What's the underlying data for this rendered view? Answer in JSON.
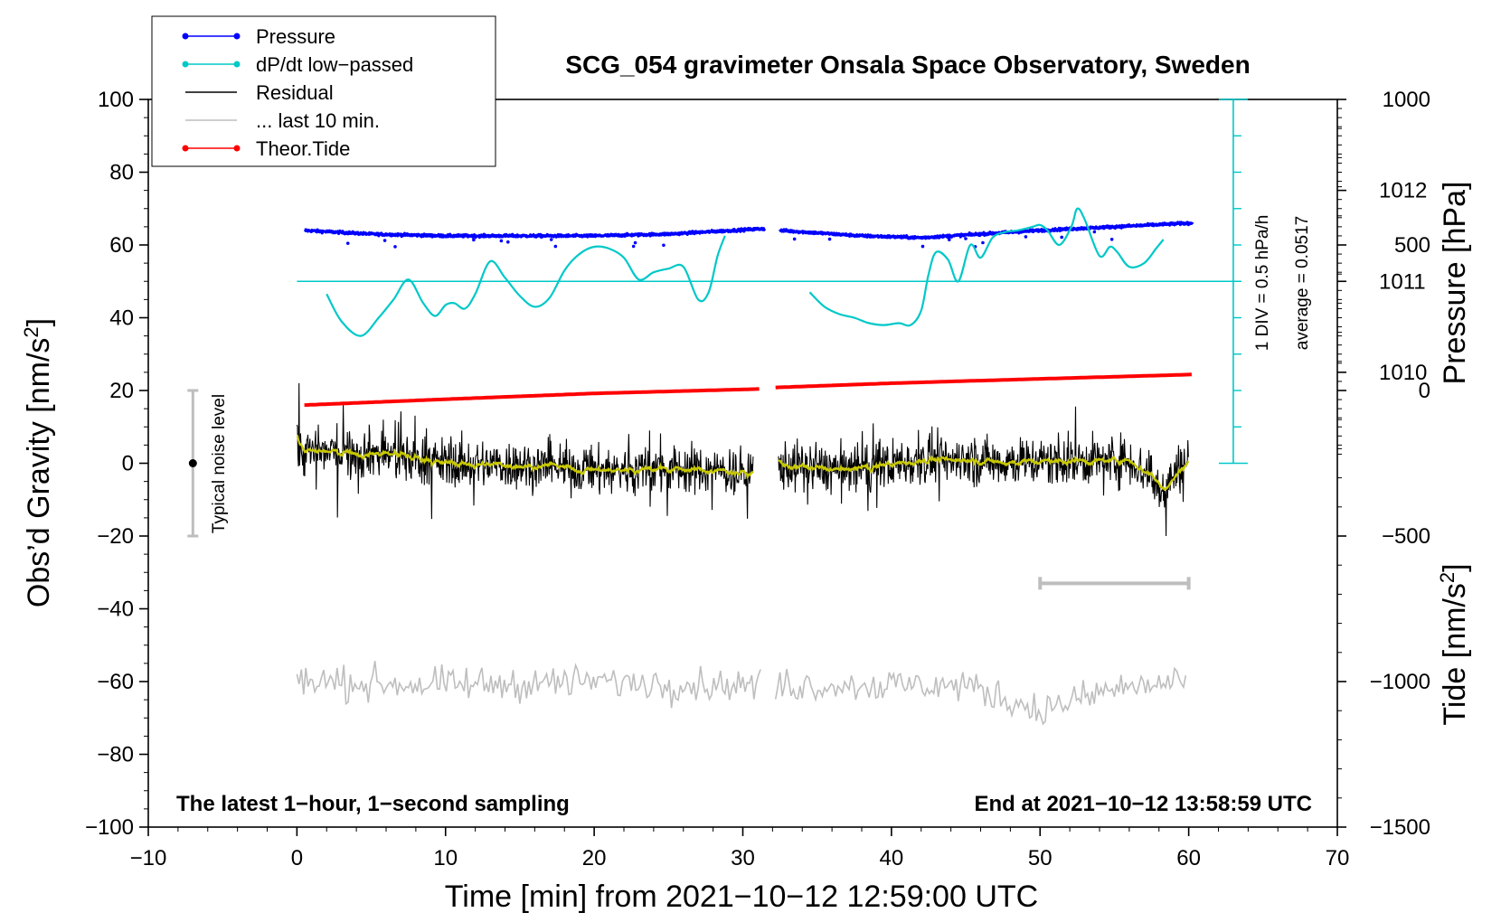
{
  "chart_data": {
    "type": "line",
    "title": "SCG_054 gravimeter Onsala Space Observatory, Sweden",
    "xlabel": "Time [min] from 2021−10−12 12:59:00 UTC",
    "ylabel": "Obs’d Gravity [nm/s²]",
    "ylabel_parts": {
      "main": "Obs’d Gravity [nm/s",
      "sup": "2",
      "end": "]"
    },
    "xlim": [
      -10,
      70
    ],
    "ylim": [
      -100,
      100
    ],
    "x_ticks": [
      -10,
      0,
      10,
      20,
      30,
      40,
      50,
      60,
      70
    ],
    "x_tick_labels": [
      "−10",
      "0",
      "10",
      "20",
      "30",
      "40",
      "50",
      "60",
      "70"
    ],
    "y_ticks": [
      -100,
      -80,
      -60,
      -40,
      -20,
      0,
      20,
      40,
      60,
      80,
      100
    ],
    "y_tick_labels": [
      "−100",
      "−80",
      "−60",
      "−40",
      "−20",
      "0",
      "20",
      "40",
      "60",
      "80",
      "100"
    ],
    "right_axes": {
      "pressure": {
        "label": "Pressure [hPa]",
        "ticks": [
          1010,
          1011,
          1012
        ],
        "tick_labels": [
          "1010",
          "1011",
          "1012"
        ],
        "gravity_at_ticks": [
          25,
          50,
          75
        ]
      },
      "tide": {
        "label": "Tide [nm/s²]",
        "label_parts": {
          "main": "Tide [nm/s",
          "sup": "2",
          "end": "]"
        },
        "ticks": [
          1000,
          500,
          0,
          -500,
          -1000,
          -1500
        ],
        "tick_labels": [
          "1000",
          "500",
          "0",
          "−500",
          "−1000",
          "−1500"
        ],
        "ylim": [
          -1500,
          1000
        ]
      }
    },
    "legend": {
      "position": "top-left",
      "entries": [
        {
          "label": "Pressure",
          "color": "#0000ff",
          "marker": true
        },
        {
          "label": "dP/dt low−passed",
          "color": "#00c8c8",
          "marker": true
        },
        {
          "label": "Residual",
          "color": "#000000",
          "marker": false
        },
        {
          "label": "... last 10 min.",
          "color": "#bebebe",
          "marker": false
        },
        {
          "label": "Theor.Tide",
          "color": "#ff0000",
          "marker": true
        }
      ]
    },
    "annotations": {
      "bottom_left": "The latest 1−hour, 1−second sampling",
      "bottom_right": "End at 2021−10−12 13:58:59 UTC",
      "noise_label": "Typical noise level",
      "noise_range": [
        -20,
        20
      ],
      "noise_x": -7,
      "scale_text_1": "1 DIV = 0.5 hPa/h",
      "scale_text_2": "average = 0.0517",
      "scale_bar": {
        "x": 63,
        "y_from": 0,
        "y_to": 100,
        "divisions": 10
      },
      "last_10_min_bar": {
        "x_from": 50,
        "x_to": 60,
        "y": -33
      }
    },
    "gap": [
      31.5,
      32.5
    ],
    "series": [
      {
        "name": "Pressure",
        "color": "#0000ff",
        "note": "values in gravity-axis units (50 = 1011 hPa)",
        "x": [
          0.5,
          5,
          10,
          15,
          20,
          25,
          31.5,
          32.5,
          38,
          42,
          46,
          50,
          55,
          60
        ],
        "y": [
          64,
          63,
          62.5,
          62.5,
          62.5,
          63,
          64.5,
          64,
          62.5,
          62,
          63,
          64,
          65,
          66
        ]
      },
      {
        "name": "dP/dt low−passed",
        "color": "#00c8c8",
        "x_segment_1": [
          2,
          3,
          4.3,
          5.5,
          6.5,
          7.5,
          8.5,
          9.3,
          10,
          10.6,
          11.3,
          12,
          13,
          14,
          15,
          16,
          17,
          18,
          19,
          20,
          21,
          22,
          23,
          24,
          25,
          26,
          27,
          27.7,
          28.3,
          28.8
        ],
        "y_segment_1": [
          46.5,
          39,
          35,
          40,
          45,
          50.5,
          44,
          40.5,
          43.5,
          44,
          42.5,
          46.5,
          55.5,
          51,
          46,
          43,
          45.5,
          53,
          57.5,
          59.5,
          59,
          56.5,
          50.5,
          52.5,
          53.5,
          54,
          45,
          47,
          57,
          62.5
        ],
        "x_segment_2": [
          34.5,
          35.5,
          36.5,
          37.5,
          38.5,
          39.5,
          40.5,
          41.3,
          42,
          42.5,
          43,
          43.8,
          44.5,
          45.3,
          46,
          46.8,
          47.6,
          48.5,
          49.5,
          50,
          50.5,
          51.3,
          52.1,
          52.5,
          53,
          54,
          54.7,
          55.2,
          56,
          57,
          57.8,
          58.3
        ],
        "y_segment_2": [
          47,
          43,
          41,
          40,
          38.5,
          38,
          38.5,
          38,
          42,
          52,
          58,
          56,
          50,
          60,
          56.5,
          62,
          63.5,
          64,
          65,
          65.5,
          64,
          60,
          65,
          70,
          67,
          57,
          59.5,
          58,
          54,
          55,
          59,
          61.5
        ]
      },
      {
        "name": "Residual",
        "color": "#000000",
        "smoothed_color": "#c8c800",
        "note": "1-second noisy residual, typical amplitude about ±10 nm/s² (extremes +22 at t≈0.3, −20 at t≈58.5)",
        "x": [
          0,
          5,
          10,
          15,
          20,
          25,
          30.5,
          32.5,
          37,
          42,
          47,
          52,
          56,
          58.3,
          60
        ],
        "y_mean": [
          3,
          3,
          0,
          -0.5,
          -2,
          -1.5,
          -2.5,
          -0.5,
          -2,
          1,
          0.5,
          0.5,
          1,
          -7,
          2
        ]
      },
      {
        "name": "... last 10 min.",
        "color": "#bebebe",
        "note": "residual of the last 10 minutes overlaid, offset to −60 on the gravity axis",
        "x": [
          0,
          10,
          20,
          30,
          40,
          45,
          50,
          55,
          60
        ],
        "y_mean": [
          -60,
          -61,
          -60,
          -61,
          -61,
          -61,
          -68,
          -62,
          -60
        ]
      },
      {
        "name": "Theor.Tide",
        "color": "#ff0000",
        "note": "values on tide axis [nm/s²]",
        "x": [
          0.5,
          10,
          20,
          31,
          32,
          40,
          50,
          60.3
        ],
        "y": [
          -50,
          -30,
          -10,
          5,
          10,
          25,
          40,
          55
        ]
      }
    ]
  }
}
